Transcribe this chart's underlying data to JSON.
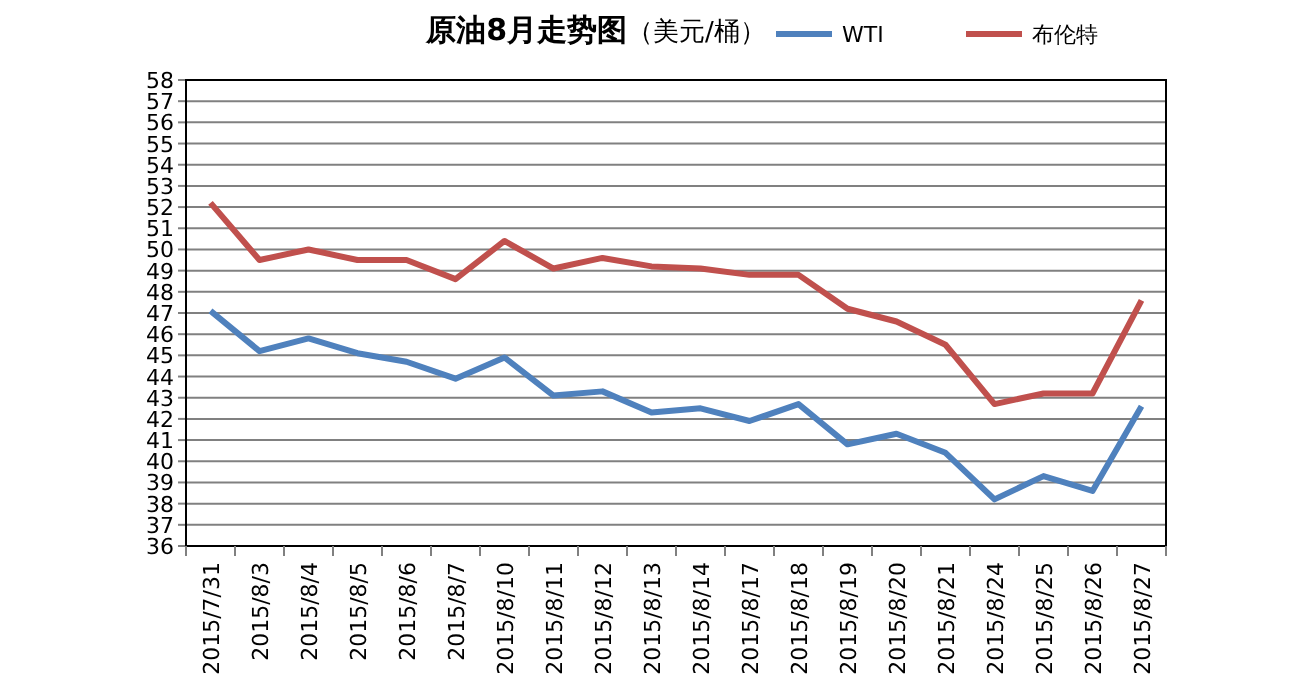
{
  "chart_data": {
    "type": "line",
    "title": "**原油8月走势图**（美元/桶）",
    "categories": [
      "2015/7/31",
      "2015/8/3",
      "2015/8/4",
      "2015/8/5",
      "2015/8/6",
      "2015/8/7",
      "2015/8/10",
      "2015/8/11",
      "2015/8/12",
      "2015/8/13",
      "2015/8/14",
      "2015/8/17",
      "2015/8/18",
      "2015/8/19",
      "2015/8/20",
      "2015/8/21",
      "2015/8/24",
      "2015/8/25",
      "2015/8/26",
      "2015/8/27"
    ],
    "series": [
      {
        "name": "WTI",
        "color": "#4f81bd",
        "values": [
          47.1,
          45.2,
          45.8,
          45.1,
          44.7,
          43.9,
          44.9,
          43.1,
          43.3,
          42.3,
          42.5,
          41.9,
          42.7,
          40.8,
          41.3,
          40.4,
          38.2,
          39.3,
          38.6,
          42.6
        ]
      },
      {
        "name": "布伦特",
        "color": "#c0504d",
        "values": [
          52.2,
          49.5,
          50.0,
          49.5,
          49.5,
          48.6,
          50.4,
          49.1,
          49.6,
          49.2,
          49.1,
          48.8,
          48.8,
          47.2,
          46.6,
          45.5,
          42.7,
          43.2,
          43.2,
          47.6
        ]
      }
    ],
    "ylim": [
      36,
      58
    ],
    "yticks": [
      36,
      37,
      38,
      39,
      40,
      41,
      42,
      43,
      44,
      45,
      46,
      47,
      48,
      49,
      50,
      51,
      52,
      53,
      54,
      55,
      56,
      57,
      58
    ],
    "grid": "y",
    "legend": "top right",
    "marker": "none",
    "line_style": "solid"
  }
}
